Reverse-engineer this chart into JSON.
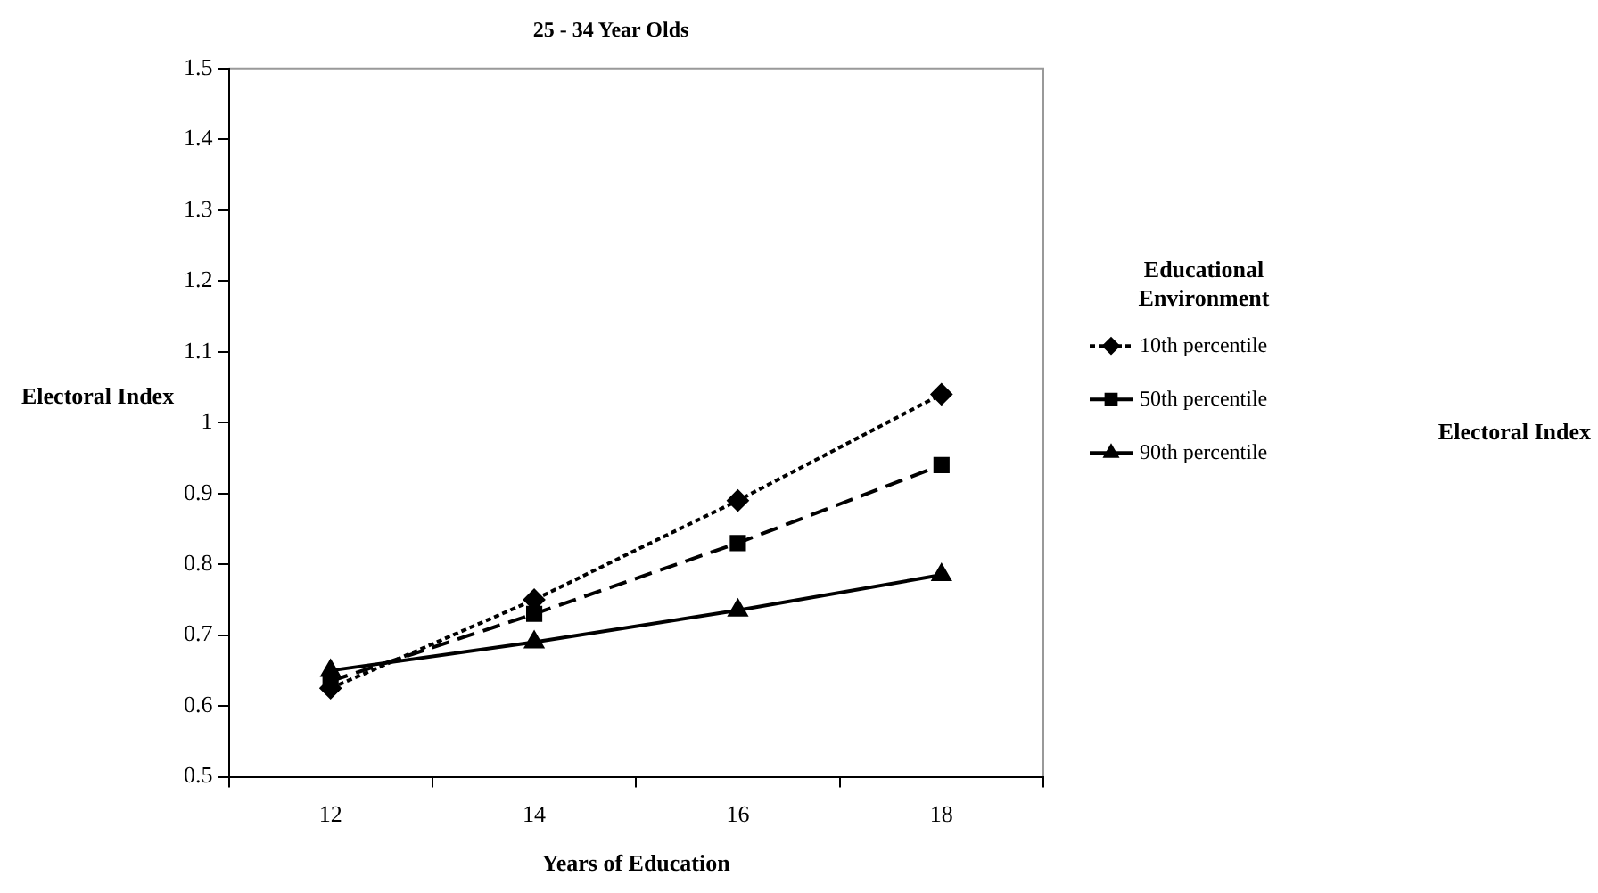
{
  "chart_data": {
    "type": "line",
    "title": "25 - 34 Year Olds",
    "xlabel": "Years of Education",
    "ylabel": "Electoral Index",
    "annotations": [
      "Electoral Index"
    ],
    "legend_title": "Educational Environment",
    "categories": [
      "12",
      "14",
      "16",
      "18"
    ],
    "series": [
      {
        "name": "10th percentile",
        "color": "#000000",
        "values": [
          0.625,
          0.75,
          0.89,
          1.04
        ],
        "marker": "diamond",
        "line_style": "dotted"
      },
      {
        "name": "50th percentile",
        "color": "#000000",
        "values": [
          0.635,
          0.73,
          0.83,
          0.94
        ],
        "marker": "square",
        "line_style": "dashed"
      },
      {
        "name": "90th percentile",
        "color": "#000000",
        "values": [
          0.65,
          0.69,
          0.735,
          0.785
        ],
        "marker": "triangle",
        "line_style": "solid"
      }
    ],
    "ylim": [
      0.5,
      1.5
    ],
    "yticks": [
      0.5,
      0.6,
      0.7,
      0.8,
      0.9,
      1,
      1.1,
      1.2,
      1.3,
      1.4,
      1.5
    ],
    "grid": false,
    "legend": "right"
  }
}
